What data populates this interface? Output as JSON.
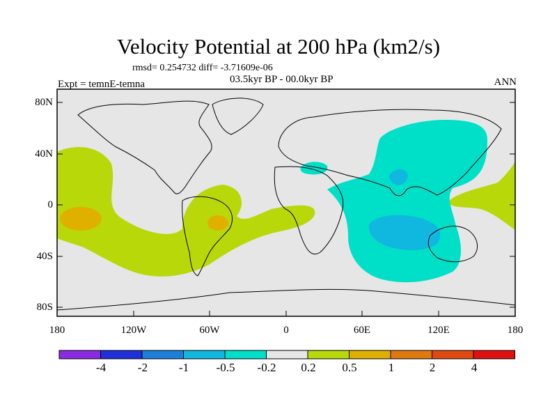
{
  "title": "Velocity Potential at 200 hPa (km2/s)",
  "stats_line": "rmsd= 0.254732 diff= -3.71609e-06",
  "experiment_line": "Expt = temnE-temna",
  "period_line": "03.5kyr BP - 00.0kyr BP",
  "season_label": "ANN",
  "latitude_ticks": [
    "80N",
    "40N",
    "0",
    "40S",
    "80S"
  ],
  "longitude_ticks": [
    "180",
    "120W",
    "60W",
    "0",
    "60E",
    "120E",
    "180"
  ],
  "colorbar": {
    "labels": [
      "-4",
      "-2",
      "-1",
      "-0.5",
      "-0.2",
      "0.2",
      "0.5",
      "1",
      "2",
      "4"
    ],
    "colors": [
      "#8a2be2",
      "#2030d8",
      "#1e7fd8",
      "#10b8e0",
      "#00e0c8",
      "#e6e6e6",
      "#b8d80a",
      "#e0b000",
      "#e07a10",
      "#e04a10",
      "#e01010"
    ]
  },
  "colors": {
    "background_field": "#e6e6e6",
    "positive_0_2_to_0_5": "#b8d80a",
    "positive_0_5_to_1": "#e0b000",
    "negative_0_2_to_0_5": "#00e0c8",
    "negative_0_5_to_1": "#10b8e0"
  }
}
